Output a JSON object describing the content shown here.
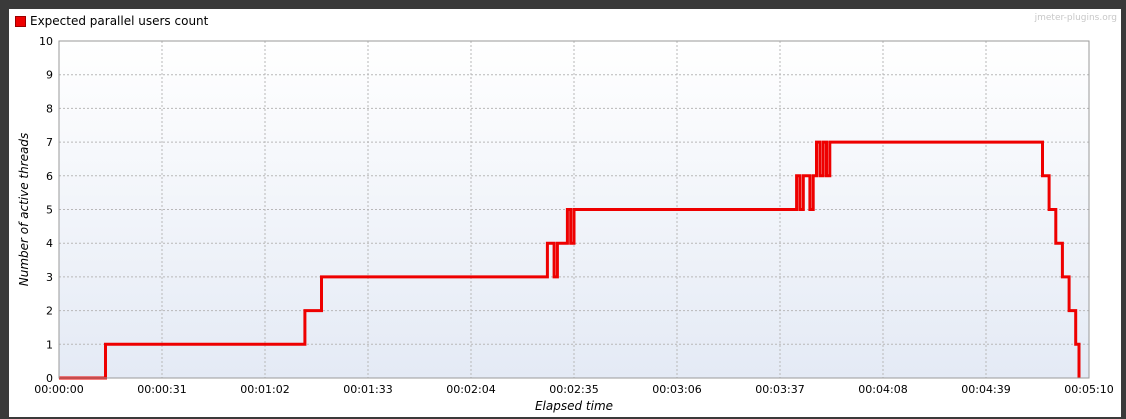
{
  "watermark": "jmeter-plugins.org",
  "chart_data": {
    "type": "line",
    "legend_placement": "top-left",
    "grid": true,
    "xlabel": "Elapsed time",
    "ylabel": "Number of active threads",
    "ylim": [
      0,
      10
    ],
    "xlim_seconds": [
      0,
      310
    ],
    "x_tick_labels": [
      "00:00:00",
      "00:00:31",
      "00:01:02",
      "00:01:33",
      "00:02:04",
      "00:02:35",
      "00:03:06",
      "00:03:37",
      "00:04:08",
      "00:04:39",
      "00:05:10"
    ],
    "y_tick_labels": [
      "0",
      "1",
      "2",
      "3",
      "4",
      "5",
      "6",
      "7",
      "8",
      "9",
      "10"
    ],
    "series": [
      {
        "name": "Expected parallel users count",
        "color": "#ee0000",
        "points": [
          [
            "00:00:00",
            0
          ],
          [
            "00:00:14",
            0
          ],
          [
            "00:00:14",
            1
          ],
          [
            "00:01:14",
            1
          ],
          [
            "00:01:14",
            2
          ],
          [
            "00:01:19",
            2
          ],
          [
            "00:01:19",
            3
          ],
          [
            "00:02:27",
            3
          ],
          [
            "00:02:27",
            4
          ],
          [
            "00:02:29",
            4
          ],
          [
            "00:02:29",
            3
          ],
          [
            "00:02:30",
            3
          ],
          [
            "00:02:30",
            4
          ],
          [
            "00:02:33",
            4
          ],
          [
            "00:02:33",
            5
          ],
          [
            "00:02:34",
            5
          ],
          [
            "00:02:34",
            4
          ],
          [
            "00:02:35",
            4
          ],
          [
            "00:02:35",
            5
          ],
          [
            "00:03:42",
            5
          ],
          [
            "00:03:42",
            6
          ],
          [
            "00:03:43",
            6
          ],
          [
            "00:03:43",
            5
          ],
          [
            "00:03:44",
            5
          ],
          [
            "00:03:44",
            6
          ],
          [
            "00:03:46",
            6
          ],
          [
            "00:03:46",
            5
          ],
          [
            "00:03:47",
            5
          ],
          [
            "00:03:47",
            6
          ],
          [
            "00:03:48",
            6
          ],
          [
            "00:03:48",
            7
          ],
          [
            "00:03:49",
            7
          ],
          [
            "00:03:49",
            6
          ],
          [
            "00:03:50",
            6
          ],
          [
            "00:03:50",
            7
          ],
          [
            "00:03:51",
            7
          ],
          [
            "00:03:51",
            6
          ],
          [
            "00:03:52",
            6
          ],
          [
            "00:03:52",
            7
          ],
          [
            "00:04:56",
            7
          ],
          [
            "00:04:56",
            6
          ],
          [
            "00:04:58",
            6
          ],
          [
            "00:04:58",
            5
          ],
          [
            "00:05:00",
            5
          ],
          [
            "00:05:00",
            4
          ],
          [
            "00:05:02",
            4
          ],
          [
            "00:05:02",
            3
          ],
          [
            "00:05:04",
            3
          ],
          [
            "00:05:04",
            2
          ],
          [
            "00:05:06",
            2
          ],
          [
            "00:05:06",
            1
          ],
          [
            "00:05:07",
            1
          ],
          [
            "00:05:07",
            0
          ]
        ]
      }
    ]
  }
}
